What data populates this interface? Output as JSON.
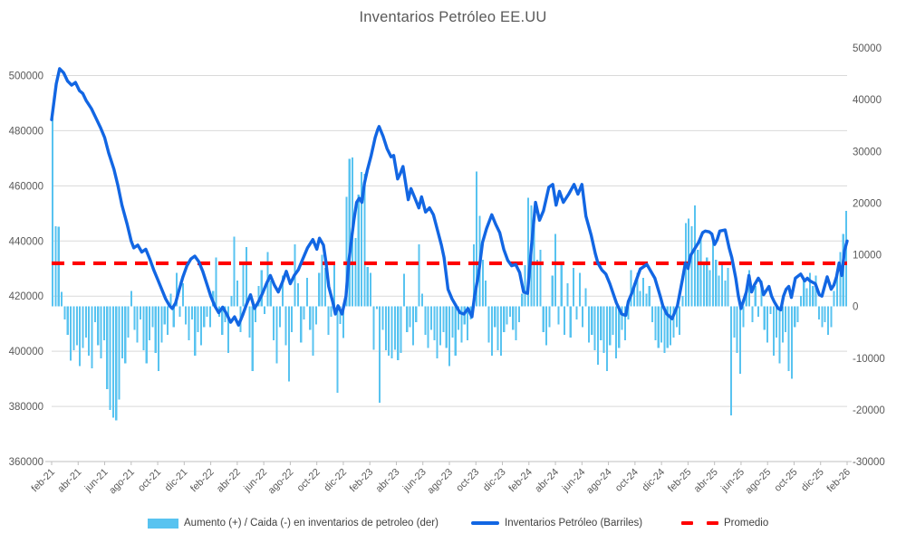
{
  "title": "Inventarios Petróleo EE.UU",
  "legend": {
    "bars": "Aumento (+) / Caida (-) en inventarios de petroleo (der)",
    "line": "Inventarios Petróleo (Barriles)",
    "avg": "Promedio"
  },
  "colors": {
    "bars": "#58C3F0",
    "line": "#1266E3",
    "avg": "#FF0000",
    "grid": "#D9D9D9",
    "axis": "#BFBFBF",
    "labels": "#595959",
    "title": "#595959"
  },
  "chart_data": {
    "type": "combo-bar-line",
    "title": "Inventarios Petróleo EE.UU",
    "x_axis": {
      "unit": "months since feb-2021",
      "months_span": 60,
      "tick_step_months": 2,
      "labels": [
        "feb-21",
        "abr-21",
        "jun-21",
        "ago-21",
        "oct-21",
        "dic-21",
        "feb-22",
        "abr-22",
        "jun-22",
        "ago-22",
        "oct-22",
        "dic-22",
        "feb-23",
        "abr-23",
        "jun-23",
        "ago-23",
        "oct-23",
        "dic-23",
        "feb-24",
        "abr-24",
        "jun-24",
        "ago-24",
        "oct-24",
        "dic-24",
        "feb-25",
        "abr-25",
        "jun-25",
        "ago-25",
        "oct-25",
        "dic-25",
        "feb-26"
      ]
    },
    "left_axis": {
      "min": 360000,
      "max": 510000,
      "ticks": [
        500000,
        480000,
        460000,
        440000,
        420000,
        400000,
        380000,
        360000
      ],
      "grid": true
    },
    "right_axis": {
      "min": -30000,
      "max": 50000,
      "ticks": [
        50000,
        40000,
        30000,
        20000,
        10000,
        0,
        -10000,
        -20000,
        -30000
      ]
    },
    "average_line": {
      "name": "Promedio",
      "axis": "left",
      "value": 431900,
      "style": "dashed-red"
    },
    "line_series": {
      "name": "Inventarios Petróleo (Barriles)",
      "axis": "left",
      "points_x_months_y_barrels": [
        [
          0,
          484000
        ],
        [
          0.35,
          497000
        ],
        [
          0.6,
          502500
        ],
        [
          0.9,
          501000
        ],
        [
          1.2,
          498000
        ],
        [
          1.5,
          496500
        ],
        [
          1.8,
          497500
        ],
        [
          2.1,
          494500
        ],
        [
          2.35,
          493500
        ],
        [
          2.6,
          491000
        ],
        [
          3,
          488000
        ],
        [
          3.3,
          485000
        ],
        [
          3.7,
          481000
        ],
        [
          4,
          477500
        ],
        [
          4.3,
          472000
        ],
        [
          4.7,
          466000
        ],
        [
          5,
          460000
        ],
        [
          5.3,
          453000
        ],
        [
          5.7,
          446000
        ],
        [
          6,
          440000
        ],
        [
          6.2,
          437500
        ],
        [
          6.5,
          438500
        ],
        [
          6.8,
          436000
        ],
        [
          7.1,
          437000
        ],
        [
          7.4,
          433500
        ],
        [
          7.7,
          429500
        ],
        [
          8,
          426000
        ],
        [
          8.3,
          422500
        ],
        [
          8.6,
          419000
        ],
        [
          8.9,
          416500
        ],
        [
          9.1,
          415500
        ],
        [
          9.35,
          417500
        ],
        [
          9.6,
          422000
        ],
        [
          9.9,
          427000
        ],
        [
          10.2,
          431000
        ],
        [
          10.5,
          433500
        ],
        [
          10.8,
          434500
        ],
        [
          11.1,
          432500
        ],
        [
          11.4,
          429000
        ],
        [
          11.7,
          424500
        ],
        [
          12,
          420000
        ],
        [
          12.3,
          416500
        ],
        [
          12.6,
          414000
        ],
        [
          12.9,
          416000
        ],
        [
          13.2,
          413500
        ],
        [
          13.5,
          410500
        ],
        [
          13.8,
          412500
        ],
        [
          14.1,
          409500
        ],
        [
          14.4,
          413000
        ],
        [
          14.7,
          417000
        ],
        [
          15,
          420500
        ],
        [
          15.3,
          415500
        ],
        [
          15.6,
          418000
        ],
        [
          15.9,
          421000
        ],
        [
          16.2,
          424500
        ],
        [
          16.5,
          427500
        ],
        [
          16.8,
          424000
        ],
        [
          17.1,
          421500
        ],
        [
          17.4,
          425000
        ],
        [
          17.7,
          429000
        ],
        [
          18,
          424500
        ],
        [
          18.3,
          427500
        ],
        [
          18.6,
          429500
        ],
        [
          18.9,
          433000
        ],
        [
          19.3,
          437500
        ],
        [
          19.7,
          440500
        ],
        [
          20,
          437000
        ],
        [
          20.2,
          441000
        ],
        [
          20.5,
          438500
        ],
        [
          20.7,
          432000
        ],
        [
          20.9,
          423500
        ],
        [
          21.2,
          418000
        ],
        [
          21.4,
          413500
        ],
        [
          21.6,
          416500
        ],
        [
          21.9,
          413500
        ],
        [
          22.2,
          420000
        ],
        [
          22.4,
          432000
        ],
        [
          22.6,
          440000
        ],
        [
          22.8,
          447500
        ],
        [
          23,
          454000
        ],
        [
          23.2,
          455500
        ],
        [
          23.4,
          454000
        ],
        [
          23.6,
          461000
        ],
        [
          23.8,
          465500
        ],
        [
          24.1,
          471000
        ],
        [
          24.4,
          477500
        ],
        [
          24.6,
          480500
        ],
        [
          24.7,
          481500
        ],
        [
          25,
          478000
        ],
        [
          25.3,
          473500
        ],
        [
          25.6,
          470500
        ],
        [
          25.8,
          471000
        ],
        [
          26.1,
          462500
        ],
        [
          26.3,
          464500
        ],
        [
          26.5,
          467000
        ],
        [
          26.9,
          455000
        ],
        [
          27.1,
          459000
        ],
        [
          27.4,
          455500
        ],
        [
          27.7,
          452000
        ],
        [
          27.9,
          456000
        ],
        [
          28.2,
          450500
        ],
        [
          28.5,
          452000
        ],
        [
          28.8,
          449500
        ],
        [
          29.1,
          444000
        ],
        [
          29.4,
          438500
        ],
        [
          29.6,
          434000
        ],
        [
          29.9,
          422500
        ],
        [
          30.2,
          419000
        ],
        [
          30.5,
          416500
        ],
        [
          30.8,
          414000
        ],
        [
          31.1,
          413500
        ],
        [
          31.4,
          415500
        ],
        [
          31.7,
          412500
        ],
        [
          31.9,
          420000
        ],
        [
          32.2,
          428000
        ],
        [
          32.5,
          439500
        ],
        [
          32.8,
          444500
        ],
        [
          33.2,
          449500
        ],
        [
          33.5,
          446000
        ],
        [
          33.8,
          443000
        ],
        [
          34.1,
          437000
        ],
        [
          34.4,
          433000
        ],
        [
          34.7,
          431000
        ],
        [
          35,
          431500
        ],
        [
          35.3,
          428500
        ],
        [
          35.6,
          421500
        ],
        [
          35.9,
          421000
        ],
        [
          36.2,
          438500
        ],
        [
          36.5,
          454000
        ],
        [
          36.8,
          447500
        ],
        [
          37.1,
          451000
        ],
        [
          37.5,
          459500
        ],
        [
          37.8,
          460500
        ],
        [
          38.05,
          453000
        ],
        [
          38.3,
          458000
        ],
        [
          38.6,
          454000
        ],
        [
          39,
          457000
        ],
        [
          39.4,
          460500
        ],
        [
          39.7,
          457000
        ],
        [
          40,
          460500
        ],
        [
          40.3,
          449000
        ],
        [
          40.7,
          442000
        ],
        [
          41,
          435500
        ],
        [
          41.2,
          432000
        ],
        [
          41.5,
          429500
        ],
        [
          41.8,
          428000
        ],
        [
          42.1,
          424500
        ],
        [
          42.6,
          417500
        ],
        [
          43,
          413500
        ],
        [
          43.3,
          413000
        ],
        [
          43.5,
          418000
        ],
        [
          43.8,
          421500
        ],
        [
          44,
          424500
        ],
        [
          44.4,
          429800
        ],
        [
          44.9,
          431500
        ],
        [
          45.5,
          426500
        ],
        [
          45.9,
          420000
        ],
        [
          46.1,
          416500
        ],
        [
          46.4,
          413500
        ],
        [
          46.8,
          411800
        ],
        [
          47.2,
          416500
        ],
        [
          47.6,
          426500
        ],
        [
          47.8,
          432000
        ],
        [
          48,
          430000
        ],
        [
          48.2,
          434800
        ],
        [
          48.4,
          436400
        ],
        [
          48.8,
          439500
        ],
        [
          49.1,
          443000
        ],
        [
          49.3,
          443600
        ],
        [
          49.6,
          443300
        ],
        [
          49.8,
          442500
        ],
        [
          50,
          438700
        ],
        [
          50.2,
          440500
        ],
        [
          50.4,
          443600
        ],
        [
          50.8,
          444000
        ],
        [
          51.1,
          437500
        ],
        [
          51.3,
          434000
        ],
        [
          51.6,
          426500
        ],
        [
          51.8,
          420000
        ],
        [
          52,
          415500
        ],
        [
          52.4,
          421500
        ],
        [
          52.6,
          427500
        ],
        [
          52.8,
          421500
        ],
        [
          53,
          424000
        ],
        [
          53.3,
          426500
        ],
        [
          53.5,
          425000
        ],
        [
          53.7,
          420500
        ],
        [
          54.1,
          423500
        ],
        [
          54.3,
          420000
        ],
        [
          54.5,
          418000
        ],
        [
          54.8,
          415500
        ],
        [
          55,
          415000
        ],
        [
          55.2,
          420000
        ],
        [
          55.4,
          422500
        ],
        [
          55.6,
          423500
        ],
        [
          55.8,
          419500
        ],
        [
          56.1,
          426500
        ],
        [
          56.5,
          428000
        ],
        [
          56.8,
          425500
        ],
        [
          57,
          426500
        ],
        [
          57.2,
          425500
        ],
        [
          57.4,
          425000
        ],
        [
          57.6,
          424500
        ],
        [
          57.9,
          420500
        ],
        [
          58.1,
          420000
        ],
        [
          58.3,
          423500
        ],
        [
          58.5,
          427000
        ],
        [
          58.8,
          422500
        ],
        [
          59,
          424000
        ],
        [
          59.2,
          427000
        ],
        [
          59.4,
          432000
        ],
        [
          59.6,
          427500
        ],
        [
          59.8,
          436500
        ],
        [
          60,
          440000
        ]
      ]
    },
    "bar_series": {
      "name": "Aumento (+) / Caida (-) en inventarios de petroleo (der)",
      "axis": "right",
      "frequency": "weekly",
      "values": [
        37800,
        15500,
        15400,
        2800,
        -2500,
        -5500,
        -10500,
        -8500,
        -7500,
        -11500,
        -8000,
        -6000,
        -9500,
        -12000,
        -3000,
        -7500,
        -10000,
        -6500,
        -16000,
        -20000,
        -21500,
        -22000,
        -18000,
        -10000,
        -11000,
        -6000,
        3000,
        -4500,
        -7000,
        -2500,
        -8500,
        -11000,
        -6500,
        -4000,
        -9000,
        -12500,
        -7000,
        -3500,
        -5500,
        2500,
        -4000,
        6500,
        -2000,
        4500,
        -3500,
        -6500,
        -2500,
        -9500,
        -5000,
        -7500,
        -4000,
        -2000,
        -4000,
        3000,
        9500,
        -2000,
        -5500,
        -3000,
        -9000,
        2000,
        13500,
        5000,
        -5000,
        8000,
        11500,
        -6000,
        -12500,
        -3000,
        4000,
        7000,
        -1500,
        10500,
        5000,
        -6500,
        -11000,
        -4000,
        6000,
        -7500,
        -14500,
        -5000,
        12000,
        4500,
        -7000,
        -2500,
        5500,
        -4500,
        -9500,
        -3500,
        6500,
        10000,
        7500,
        -5500,
        -2000,
        8000,
        -16700,
        -3400,
        -6100,
        21200,
        28600,
        28800,
        13200,
        21600,
        26000,
        25700,
        7600,
        6500,
        -8400,
        -500,
        -18600,
        -4500,
        -8500,
        -9500,
        -10000,
        -8400,
        -10400,
        -9000,
        6300,
        -5000,
        -4000,
        -7500,
        -3000,
        12000,
        2500,
        -5500,
        -8000,
        -4500,
        -6500,
        -10000,
        -7500,
        -5000,
        -8000,
        -11500,
        -6000,
        -9500,
        -4500,
        -7000,
        -3500,
        -6500,
        -2500,
        12000,
        26100,
        17500,
        9000,
        5000,
        -7000,
        -9500,
        -4000,
        -8500,
        -9500,
        -5000,
        -3500,
        -2000,
        -4500,
        -6500,
        -3000,
        2500,
        8000,
        21000,
        19500,
        18000,
        9000,
        11000,
        -5000,
        -7500,
        -4000,
        6000,
        14000,
        -3500,
        8000,
        -5500,
        4500,
        -6000,
        7500,
        -2500,
        6500,
        -4000,
        3500,
        -7000,
        -5500,
        -8500,
        -11300,
        -6500,
        -9000,
        -12500,
        -7500,
        -5500,
        -10000,
        -8000,
        -4500,
        -6500,
        -2500,
        7000,
        4500,
        6500,
        3000,
        5500,
        2500,
        4000,
        -3000,
        -6500,
        -8000,
        -7000,
        -9000,
        -8000,
        -7500,
        -6000,
        -4000,
        -5500,
        2000,
        16100,
        17000,
        15500,
        19500,
        11000,
        13500,
        8000,
        9500,
        7000,
        13000,
        9000,
        6000,
        8000,
        5000,
        7500,
        -21100,
        -6000,
        -9000,
        -13000,
        -4000,
        3000,
        7000,
        -3000,
        4000,
        -2000,
        5000,
        -4500,
        -7000,
        -1500,
        -9500,
        -6000,
        -11000,
        -7000,
        -5000,
        -12500,
        -14000,
        -4000,
        -3000,
        2000,
        5000,
        3500,
        6500,
        4000,
        6000,
        -2500,
        -4000,
        -3000,
        -5500,
        -4000,
        3000,
        6500,
        10500,
        14000,
        18500
      ]
    }
  }
}
